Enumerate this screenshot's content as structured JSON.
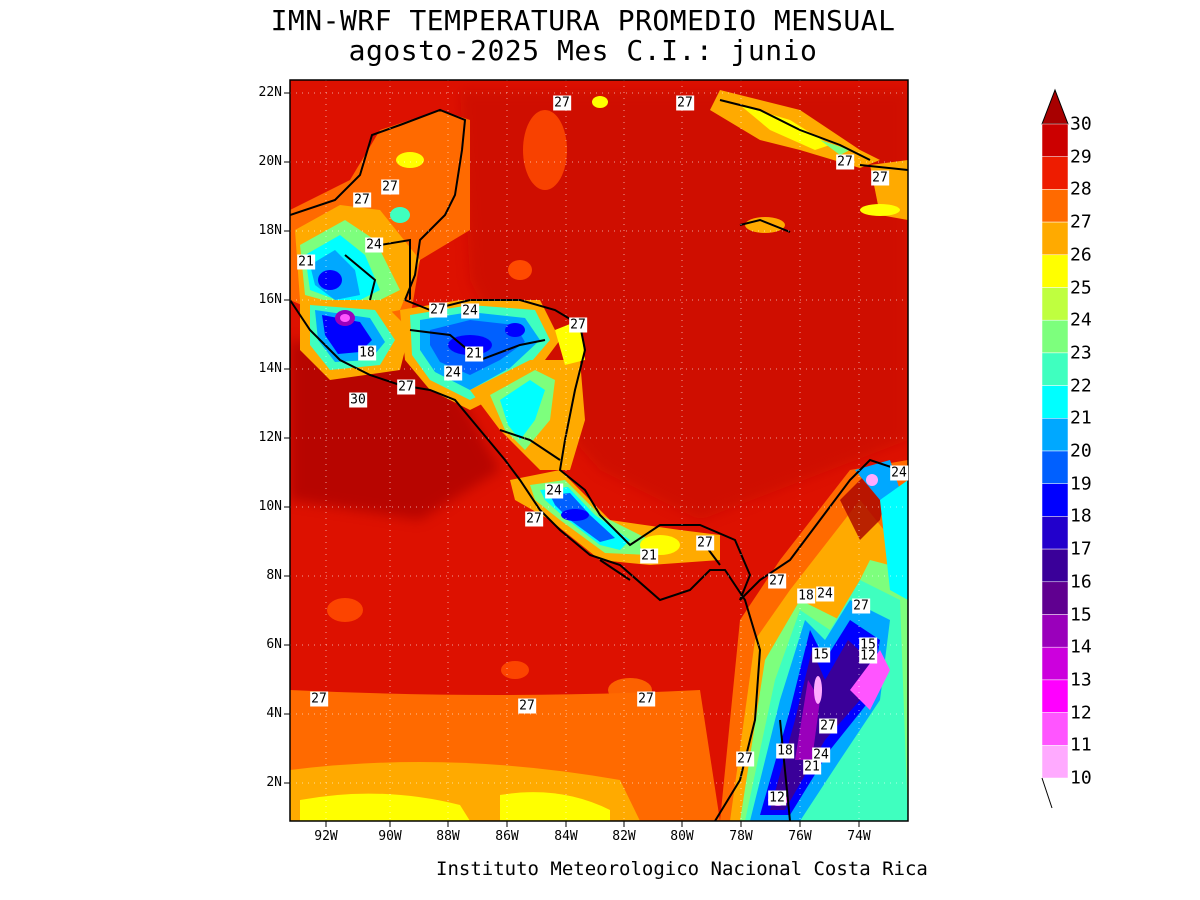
{
  "header": {
    "title_line1": "IMN-WRF  TEMPERATURA PROMEDIO MENSUAL",
    "title_line2": "agosto-2025 Mes C.I.: junio"
  },
  "map": {
    "lat_labels": [
      "22N",
      "20N",
      "18N",
      "16N",
      "14N",
      "12N",
      "10N",
      "8N",
      "6N",
      "4N",
      "2N"
    ],
    "lon_labels": [
      "92W",
      "90W",
      "88W",
      "86W",
      "84W",
      "82W",
      "80W",
      "78W",
      "76W",
      "74W"
    ],
    "contour_labels": [
      {
        "text": "27"
      },
      {
        "text": "27"
      },
      {
        "text": "27"
      },
      {
        "text": "27"
      },
      {
        "text": "27"
      },
      {
        "text": "27"
      },
      {
        "text": "24"
      },
      {
        "text": "21"
      },
      {
        "text": "27"
      },
      {
        "text": "24"
      },
      {
        "text": "27"
      },
      {
        "text": "18"
      },
      {
        "text": "21"
      },
      {
        "text": "24"
      },
      {
        "text": "27"
      },
      {
        "text": "30"
      },
      {
        "text": "24"
      },
      {
        "text": "27"
      },
      {
        "text": "21"
      },
      {
        "text": "27"
      },
      {
        "text": "24"
      },
      {
        "text": "27"
      },
      {
        "text": "18"
      },
      {
        "text": "24"
      },
      {
        "text": "27"
      },
      {
        "text": "15"
      },
      {
        "text": "15"
      },
      {
        "text": "12"
      },
      {
        "text": "27"
      },
      {
        "text": "27"
      },
      {
        "text": "27"
      },
      {
        "text": "27"
      },
      {
        "text": "27"
      },
      {
        "text": "18"
      },
      {
        "text": "24"
      },
      {
        "text": "21"
      },
      {
        "text": "12"
      }
    ]
  },
  "colorbar": {
    "labels": [
      "30",
      "29",
      "28",
      "27",
      "26",
      "25",
      "24",
      "23",
      "22",
      "21",
      "20",
      "19",
      "18",
      "17",
      "16",
      "15",
      "14",
      "13",
      "12",
      "11",
      "10"
    ],
    "colors": [
      "#a80000",
      "#cc0000",
      "#ee1c00",
      "#ff6a00",
      "#ffaa00",
      "#ffff00",
      "#bfff3f",
      "#7dff7d",
      "#3fffbf",
      "#00ffff",
      "#00a8ff",
      "#0060ff",
      "#0000ff",
      "#2200cc",
      "#3a0099",
      "#600090",
      "#9a00bb",
      "#cc00dd",
      "#ff00ff",
      "#ff55ff",
      "#ffaaff"
    ],
    "top_arrow_color": "#a80000"
  },
  "footer": {
    "credit": "Instituto Meteorologico Nacional Costa Rica"
  }
}
